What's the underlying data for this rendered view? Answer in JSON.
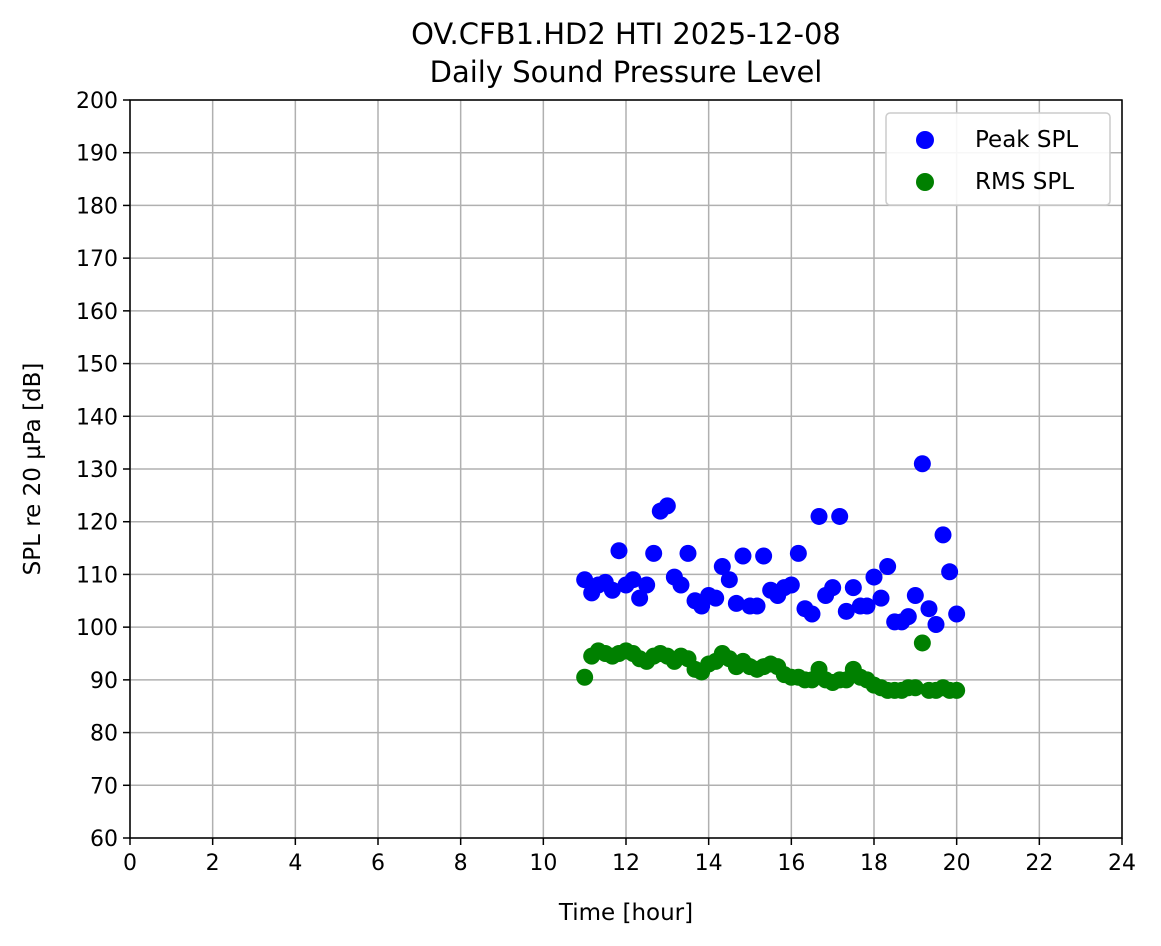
{
  "chart_data": {
    "type": "scatter",
    "title": "OV.CFB1.HD2 HTI 2025-12-08",
    "subtitle": "Daily Sound Pressure Level",
    "xlabel": "Time [hour]",
    "ylabel": "SPL re 20 µPa [dB]",
    "xlim": [
      0,
      24
    ],
    "ylim": [
      60,
      200
    ],
    "xticks": [
      "0",
      "2",
      "4",
      "6",
      "8",
      "10",
      "12",
      "14",
      "16",
      "18",
      "20",
      "22",
      "24"
    ],
    "yticks": [
      "60",
      "70",
      "80",
      "90",
      "100",
      "110",
      "120",
      "130",
      "140",
      "150",
      "160",
      "170",
      "180",
      "190",
      "200"
    ],
    "grid": true,
    "legend_position": "top-right",
    "series": [
      {
        "name": "Peak SPL",
        "color": "#0000ff",
        "points": [
          [
            11.0,
            109
          ],
          [
            11.17,
            106.5
          ],
          [
            11.33,
            108
          ],
          [
            11.5,
            108.5
          ],
          [
            11.67,
            107
          ],
          [
            11.83,
            114.5
          ],
          [
            12.0,
            108
          ],
          [
            12.17,
            109
          ],
          [
            12.33,
            105.5
          ],
          [
            12.5,
            108
          ],
          [
            12.67,
            114
          ],
          [
            12.83,
            122
          ],
          [
            13.0,
            123
          ],
          [
            13.17,
            109.5
          ],
          [
            13.33,
            108
          ],
          [
            13.5,
            114
          ],
          [
            13.67,
            105
          ],
          [
            13.83,
            104
          ],
          [
            14.0,
            106
          ],
          [
            14.17,
            105.5
          ],
          [
            14.33,
            111.5
          ],
          [
            14.5,
            109
          ],
          [
            14.67,
            104.5
          ],
          [
            14.83,
            113.5
          ],
          [
            15.0,
            104
          ],
          [
            15.17,
            104
          ],
          [
            15.33,
            113.5
          ],
          [
            15.5,
            107
          ],
          [
            15.67,
            106
          ],
          [
            15.83,
            107.5
          ],
          [
            16.0,
            108
          ],
          [
            16.17,
            114
          ],
          [
            16.33,
            103.5
          ],
          [
            16.5,
            102.5
          ],
          [
            16.67,
            121
          ],
          [
            16.83,
            106
          ],
          [
            17.0,
            107.5
          ],
          [
            17.17,
            121
          ],
          [
            17.33,
            103
          ],
          [
            17.5,
            107.5
          ],
          [
            17.67,
            104
          ],
          [
            17.83,
            104
          ],
          [
            18.0,
            109.5
          ],
          [
            18.17,
            105.5
          ],
          [
            18.33,
            111.5
          ],
          [
            18.5,
            101
          ],
          [
            18.67,
            101
          ],
          [
            18.83,
            102
          ],
          [
            19.0,
            106
          ],
          [
            19.17,
            131
          ],
          [
            19.33,
            103.5
          ],
          [
            19.5,
            100.5
          ],
          [
            19.67,
            117.5
          ],
          [
            19.83,
            110.5
          ],
          [
            20.0,
            102.5
          ]
        ]
      },
      {
        "name": "RMS SPL",
        "color": "#008000",
        "points": [
          [
            11.0,
            90.5
          ],
          [
            11.17,
            94.5
          ],
          [
            11.33,
            95.5
          ],
          [
            11.5,
            95
          ],
          [
            11.67,
            94.5
          ],
          [
            11.83,
            95
          ],
          [
            12.0,
            95.5
          ],
          [
            12.17,
            95
          ],
          [
            12.33,
            94
          ],
          [
            12.5,
            93.5
          ],
          [
            12.67,
            94.5
          ],
          [
            12.83,
            95
          ],
          [
            13.0,
            94.5
          ],
          [
            13.17,
            93.5
          ],
          [
            13.33,
            94.5
          ],
          [
            13.5,
            94
          ],
          [
            13.67,
            92
          ],
          [
            13.83,
            91.5
          ],
          [
            14.0,
            93
          ],
          [
            14.17,
            93.5
          ],
          [
            14.33,
            95
          ],
          [
            14.5,
            94
          ],
          [
            14.67,
            92.5
          ],
          [
            14.83,
            93.5
          ],
          [
            15.0,
            92.5
          ],
          [
            15.17,
            92
          ],
          [
            15.33,
            92.5
          ],
          [
            15.5,
            93
          ],
          [
            15.67,
            92.5
          ],
          [
            15.83,
            91
          ],
          [
            16.0,
            90.5
          ],
          [
            16.17,
            90.5
          ],
          [
            16.33,
            90
          ],
          [
            16.5,
            90
          ],
          [
            16.67,
            92
          ],
          [
            16.83,
            90
          ],
          [
            17.0,
            89.5
          ],
          [
            17.17,
            90
          ],
          [
            17.33,
            90
          ],
          [
            17.5,
            92
          ],
          [
            17.67,
            90.5
          ],
          [
            17.83,
            90
          ],
          [
            18.0,
            89
          ],
          [
            18.17,
            88.5
          ],
          [
            18.33,
            88
          ],
          [
            18.5,
            88
          ],
          [
            18.67,
            88
          ],
          [
            18.83,
            88.5
          ],
          [
            19.0,
            88.5
          ],
          [
            19.17,
            97
          ],
          [
            19.33,
            88
          ],
          [
            19.5,
            88
          ],
          [
            19.67,
            88.5
          ],
          [
            19.83,
            88
          ],
          [
            20.0,
            88
          ]
        ]
      }
    ]
  }
}
